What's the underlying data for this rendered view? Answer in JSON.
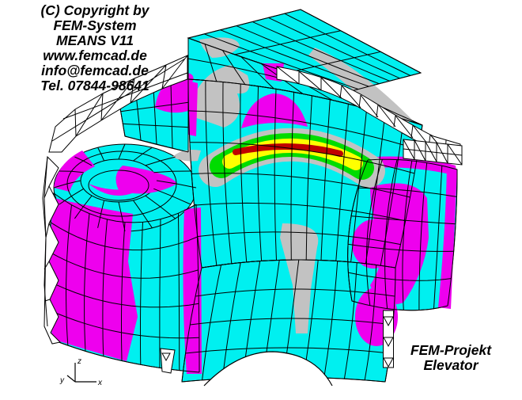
{
  "meta": {
    "description": "FEM stress contour plot of an elevator component, MEANS V11 postprocessor view"
  },
  "watermark": {
    "lines": [
      "(C) Copyright by",
      "FEM-System",
      "MEANS V11",
      "www.femcad.de",
      "info@femcad.de",
      "Tel. 07844-98641"
    ]
  },
  "project_label": {
    "lines": [
      "FEM-Projekt",
      "Elevator"
    ]
  },
  "axis_triad": {
    "x": "x",
    "y": "y",
    "z": "z"
  },
  "palette": {
    "background": "#ffffff",
    "mesh-line": "#000000",
    "wireframe": "#000000",
    "contour-cyan": "#00f0f0",
    "contour-magenta": "#ee00ee",
    "contour-gray": "#c2c2c2",
    "contour-green": "#00dc00",
    "contour-yellow": "#ffff00",
    "contour-red": "#c00000"
  }
}
